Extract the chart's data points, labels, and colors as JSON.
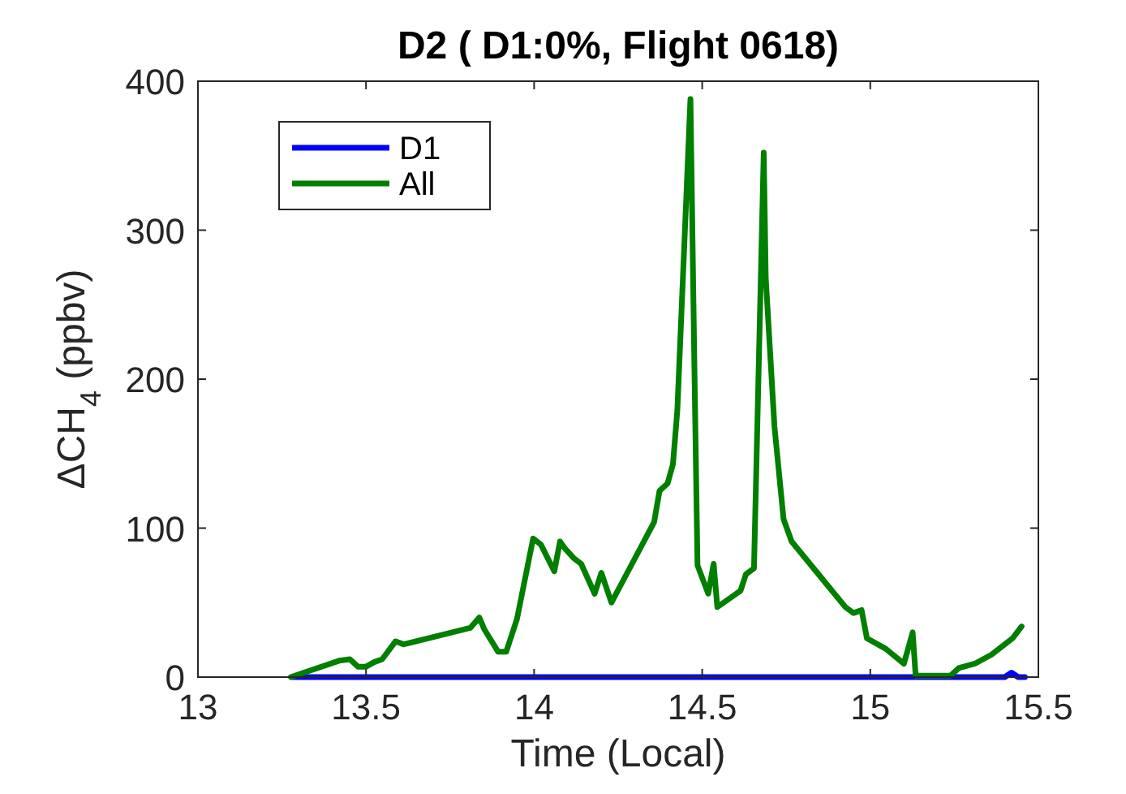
{
  "chart_data": {
    "type": "line",
    "title": "D2 ( D1:0%, Flight 0618)",
    "xlabel": "Time (Local)",
    "ylabel": "ΔCH$_{4}$ (ppbv)",
    "xlim": [
      13,
      15.5
    ],
    "xticks": [
      13,
      13.5,
      14,
      14.5,
      15,
      15.5
    ],
    "ylim": [
      0,
      400
    ],
    "yticks": [
      0,
      100,
      200,
      300,
      400
    ],
    "grid": false,
    "legend": "top left",
    "series": [
      {
        "name": "D1",
        "color": "#0000ff",
        "x": [
          13.28,
          13.6,
          14.0,
          14.5,
          15.0,
          15.4,
          15.42,
          15.44,
          15.46
        ],
        "values": [
          0,
          0,
          0,
          0,
          0,
          0,
          3,
          0,
          0
        ]
      },
      {
        "name": "All",
        "color": "#007f00",
        "x": [
          13.276,
          13.42,
          13.452,
          13.476,
          13.5,
          13.524,
          13.548,
          13.588,
          13.612,
          13.81,
          13.837,
          13.852,
          13.893,
          13.917,
          13.949,
          13.997,
          14.02,
          14.06,
          14.077,
          14.093,
          14.117,
          14.14,
          14.18,
          14.2,
          14.23,
          14.357,
          14.373,
          14.397,
          14.413,
          14.426,
          14.465,
          14.477,
          14.486,
          14.518,
          14.534,
          14.545,
          14.614,
          14.63,
          14.654,
          14.683,
          14.689,
          14.715,
          14.742,
          14.766,
          14.926,
          14.95,
          14.974,
          14.99,
          15.046,
          15.1,
          15.126,
          15.135,
          15.239,
          15.263,
          15.311,
          15.36,
          15.423,
          15.45
        ],
        "values": [
          0,
          11,
          12,
          7,
          7,
          10,
          12,
          24,
          22,
          33,
          40,
          32,
          17,
          17,
          39,
          93,
          89,
          71,
          91,
          86,
          80,
          76,
          56,
          70,
          50,
          104,
          125,
          130,
          143,
          179,
          388,
          205,
          75,
          56,
          76,
          47,
          58,
          69,
          73,
          352,
          268,
          168,
          106,
          91,
          47,
          43,
          45,
          26,
          19,
          9,
          30,
          1,
          1,
          6,
          9,
          15,
          26,
          34
        ]
      }
    ]
  }
}
